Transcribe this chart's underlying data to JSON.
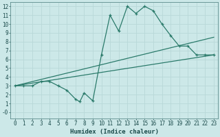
{
  "title": "",
  "xlabel": "Humidex (Indice chaleur)",
  "bg_color": "#cce8e8",
  "grid_color": "#aacccc",
  "line_color": "#2a7a6a",
  "xlim": [
    -0.5,
    23.5
  ],
  "ylim": [
    -0.7,
    12.5
  ],
  "xticks": [
    0,
    1,
    2,
    3,
    4,
    5,
    6,
    7,
    8,
    9,
    10,
    11,
    12,
    13,
    14,
    15,
    16,
    17,
    18,
    19,
    20,
    21,
    22,
    23
  ],
  "yticks": [
    0,
    1,
    2,
    3,
    4,
    5,
    6,
    7,
    8,
    9,
    10,
    11,
    12
  ],
  "ytick_labels": [
    "-0",
    "1",
    "2",
    "3",
    "4",
    "5",
    "6",
    "7",
    "8",
    "9",
    "10",
    "11",
    "12"
  ],
  "line1_x": [
    0,
    1,
    2,
    3,
    4,
    5,
    6,
    7,
    7.5,
    8,
    9,
    10,
    11,
    12,
    13,
    14,
    15,
    16,
    17,
    18,
    19,
    20,
    21,
    22,
    23
  ],
  "line1_y": [
    3,
    3,
    3,
    3.5,
    3.5,
    3,
    2.5,
    1.5,
    1.2,
    2.2,
    1.3,
    6.5,
    11,
    9.2,
    12,
    11.2,
    12,
    11.5,
    10,
    8.7,
    7.5,
    7.5,
    6.5,
    6.5,
    6.5
  ],
  "line2_x": [
    0,
    23
  ],
  "line2_y": [
    3.0,
    6.5
  ],
  "line3_x": [
    0,
    23
  ],
  "line3_y": [
    3.0,
    8.5
  ],
  "marker_x": [
    0,
    1,
    2,
    3,
    4,
    5,
    6,
    7,
    7.5,
    8,
    9,
    10,
    11,
    12,
    13,
    14,
    15,
    16,
    17,
    18,
    19,
    20,
    21,
    22,
    23
  ],
  "marker_y": [
    3,
    3,
    3,
    3.5,
    3.5,
    3,
    2.5,
    1.5,
    1.2,
    2.2,
    1.3,
    6.5,
    11,
    9.2,
    12,
    11.2,
    12,
    11.5,
    10,
    8.7,
    7.5,
    7.5,
    6.5,
    6.5,
    6.5
  ]
}
